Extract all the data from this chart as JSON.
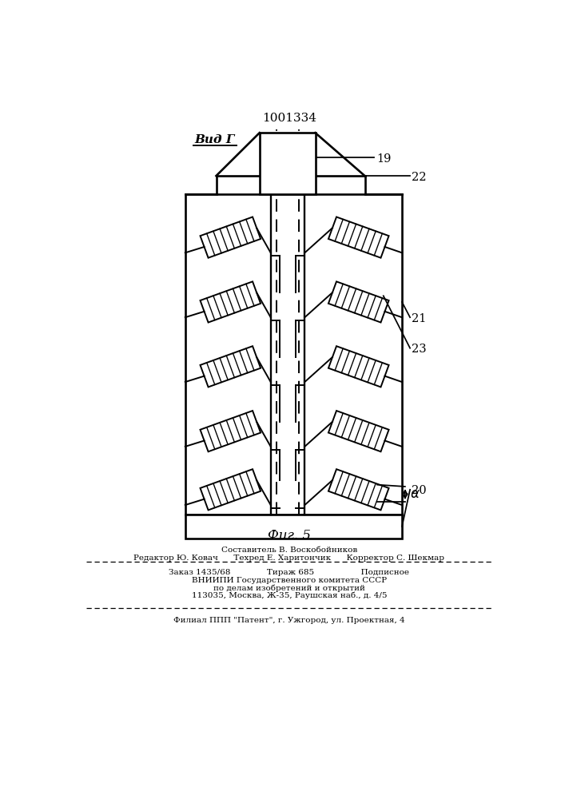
{
  "title": "1001334",
  "view_label": "Вид Г",
  "fig_label": "Фиг. 5",
  "bg_color": "#ffffff",
  "line_color": "#000000"
}
